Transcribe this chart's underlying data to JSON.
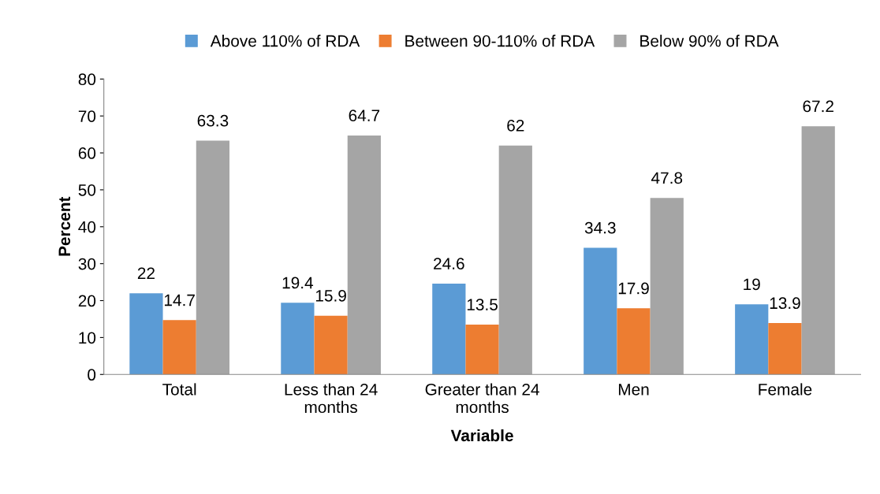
{
  "chart_data": {
    "type": "bar",
    "xlabel": "Variable",
    "ylabel": "Percent",
    "categories": [
      "Total",
      "Less than 24 months",
      "Greater than 24 months",
      "Men",
      "Female"
    ],
    "series": [
      {
        "name": "Above 110% of RDA",
        "color": "#5b9bd5",
        "values": [
          22,
          19.4,
          24.6,
          34.3,
          19
        ]
      },
      {
        "name": "Between 90-110% of RDA",
        "color": "#ed7d31",
        "values": [
          14.7,
          15.9,
          13.5,
          17.9,
          13.9
        ]
      },
      {
        "name": "Below 90% of RDA",
        "color": "#a5a5a5",
        "values": [
          63.3,
          64.7,
          62,
          47.8,
          67.2
        ]
      }
    ],
    "ylim": [
      0,
      80
    ],
    "yticks": [
      0,
      10,
      20,
      30,
      40,
      50,
      60,
      70,
      80
    ],
    "grid": false,
    "legend": "top",
    "data_labels": true
  }
}
